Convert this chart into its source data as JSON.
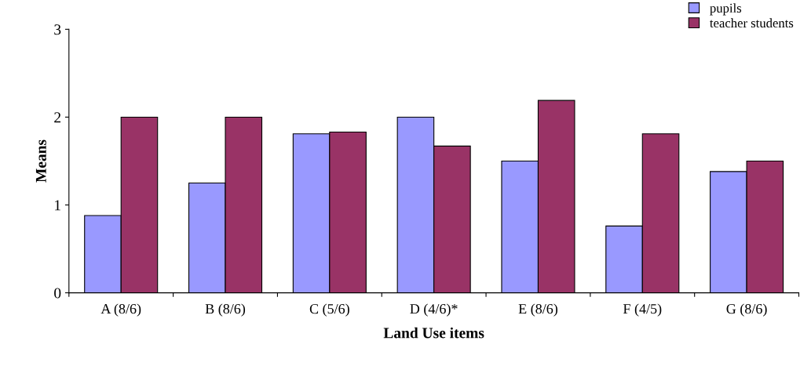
{
  "chart_data": {
    "type": "bar",
    "xlabel": "Land Use items",
    "ylabel": "Means",
    "categories": [
      "A (8/6)",
      "B (8/6)",
      "C (5/6)",
      "D (4/6)*",
      "E (8/6)",
      "F (4/5)",
      "G (8/6)"
    ],
    "series": [
      {
        "name": "pupils",
        "color": "#9999ff",
        "values": [
          0.88,
          1.25,
          1.81,
          2.0,
          1.5,
          0.76,
          1.38
        ]
      },
      {
        "name": "teacher students",
        "color": "#993366",
        "values": [
          2.0,
          2.0,
          1.83,
          1.67,
          2.19,
          1.81,
          1.5
        ]
      }
    ],
    "ylim": [
      0,
      3
    ],
    "yticks": [
      0,
      1,
      2,
      3
    ],
    "grid": false,
    "legend": "top right"
  }
}
